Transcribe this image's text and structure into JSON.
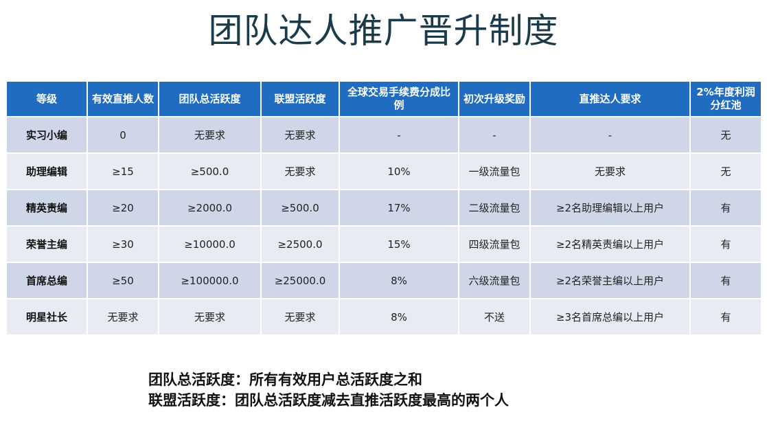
{
  "title": "团队达人推广晋升制度",
  "table": {
    "headers": [
      "等级",
      "有效直推人数",
      "团队总活跃度",
      "联盟活跃度",
      "全球交易手续费分成比例",
      "初次升级奖励",
      "直推达人要求",
      "2%年度利润分红池"
    ],
    "rows": [
      [
        "实习小编",
        "0",
        "无要求",
        "无要求",
        "-",
        "-",
        "-",
        "无"
      ],
      [
        "助理编辑",
        "≥15",
        "≥500.0",
        "无要求",
        "10%",
        "一级流量包",
        "无要求",
        "无"
      ],
      [
        "精英责编",
        "≥20",
        "≥2000.0",
        "≥500.0",
        "17%",
        "二级流量包",
        "≥2名助理编辑以上用户",
        "有"
      ],
      [
        "荣誉主编",
        "≥30",
        "≥10000.0",
        "≥2500.0",
        "15%",
        "四级流量包",
        "≥2名精英责编以上用户",
        "有"
      ],
      [
        "首席总编",
        "≥50",
        "≥100000.0",
        "≥25000.0",
        "8%",
        "六级流量包",
        "≥2名荣誉主编以上用户",
        "有"
      ],
      [
        "明星社长",
        "无要求",
        "无要求",
        "无要求",
        "8%",
        "不送",
        "≥3名首席总编以上用户",
        "有"
      ]
    ]
  },
  "notes": [
    "团队总活跃度：所有有效用户总活跃度之和",
    "联盟活跃度：团队总活跃度减去直推活跃度最高的两个人"
  ],
  "colors": {
    "header_bg": "#1f6cc0",
    "row_dark": "#cfd6e8",
    "row_light": "#e8ebf4",
    "title": "#1b3b4a"
  }
}
